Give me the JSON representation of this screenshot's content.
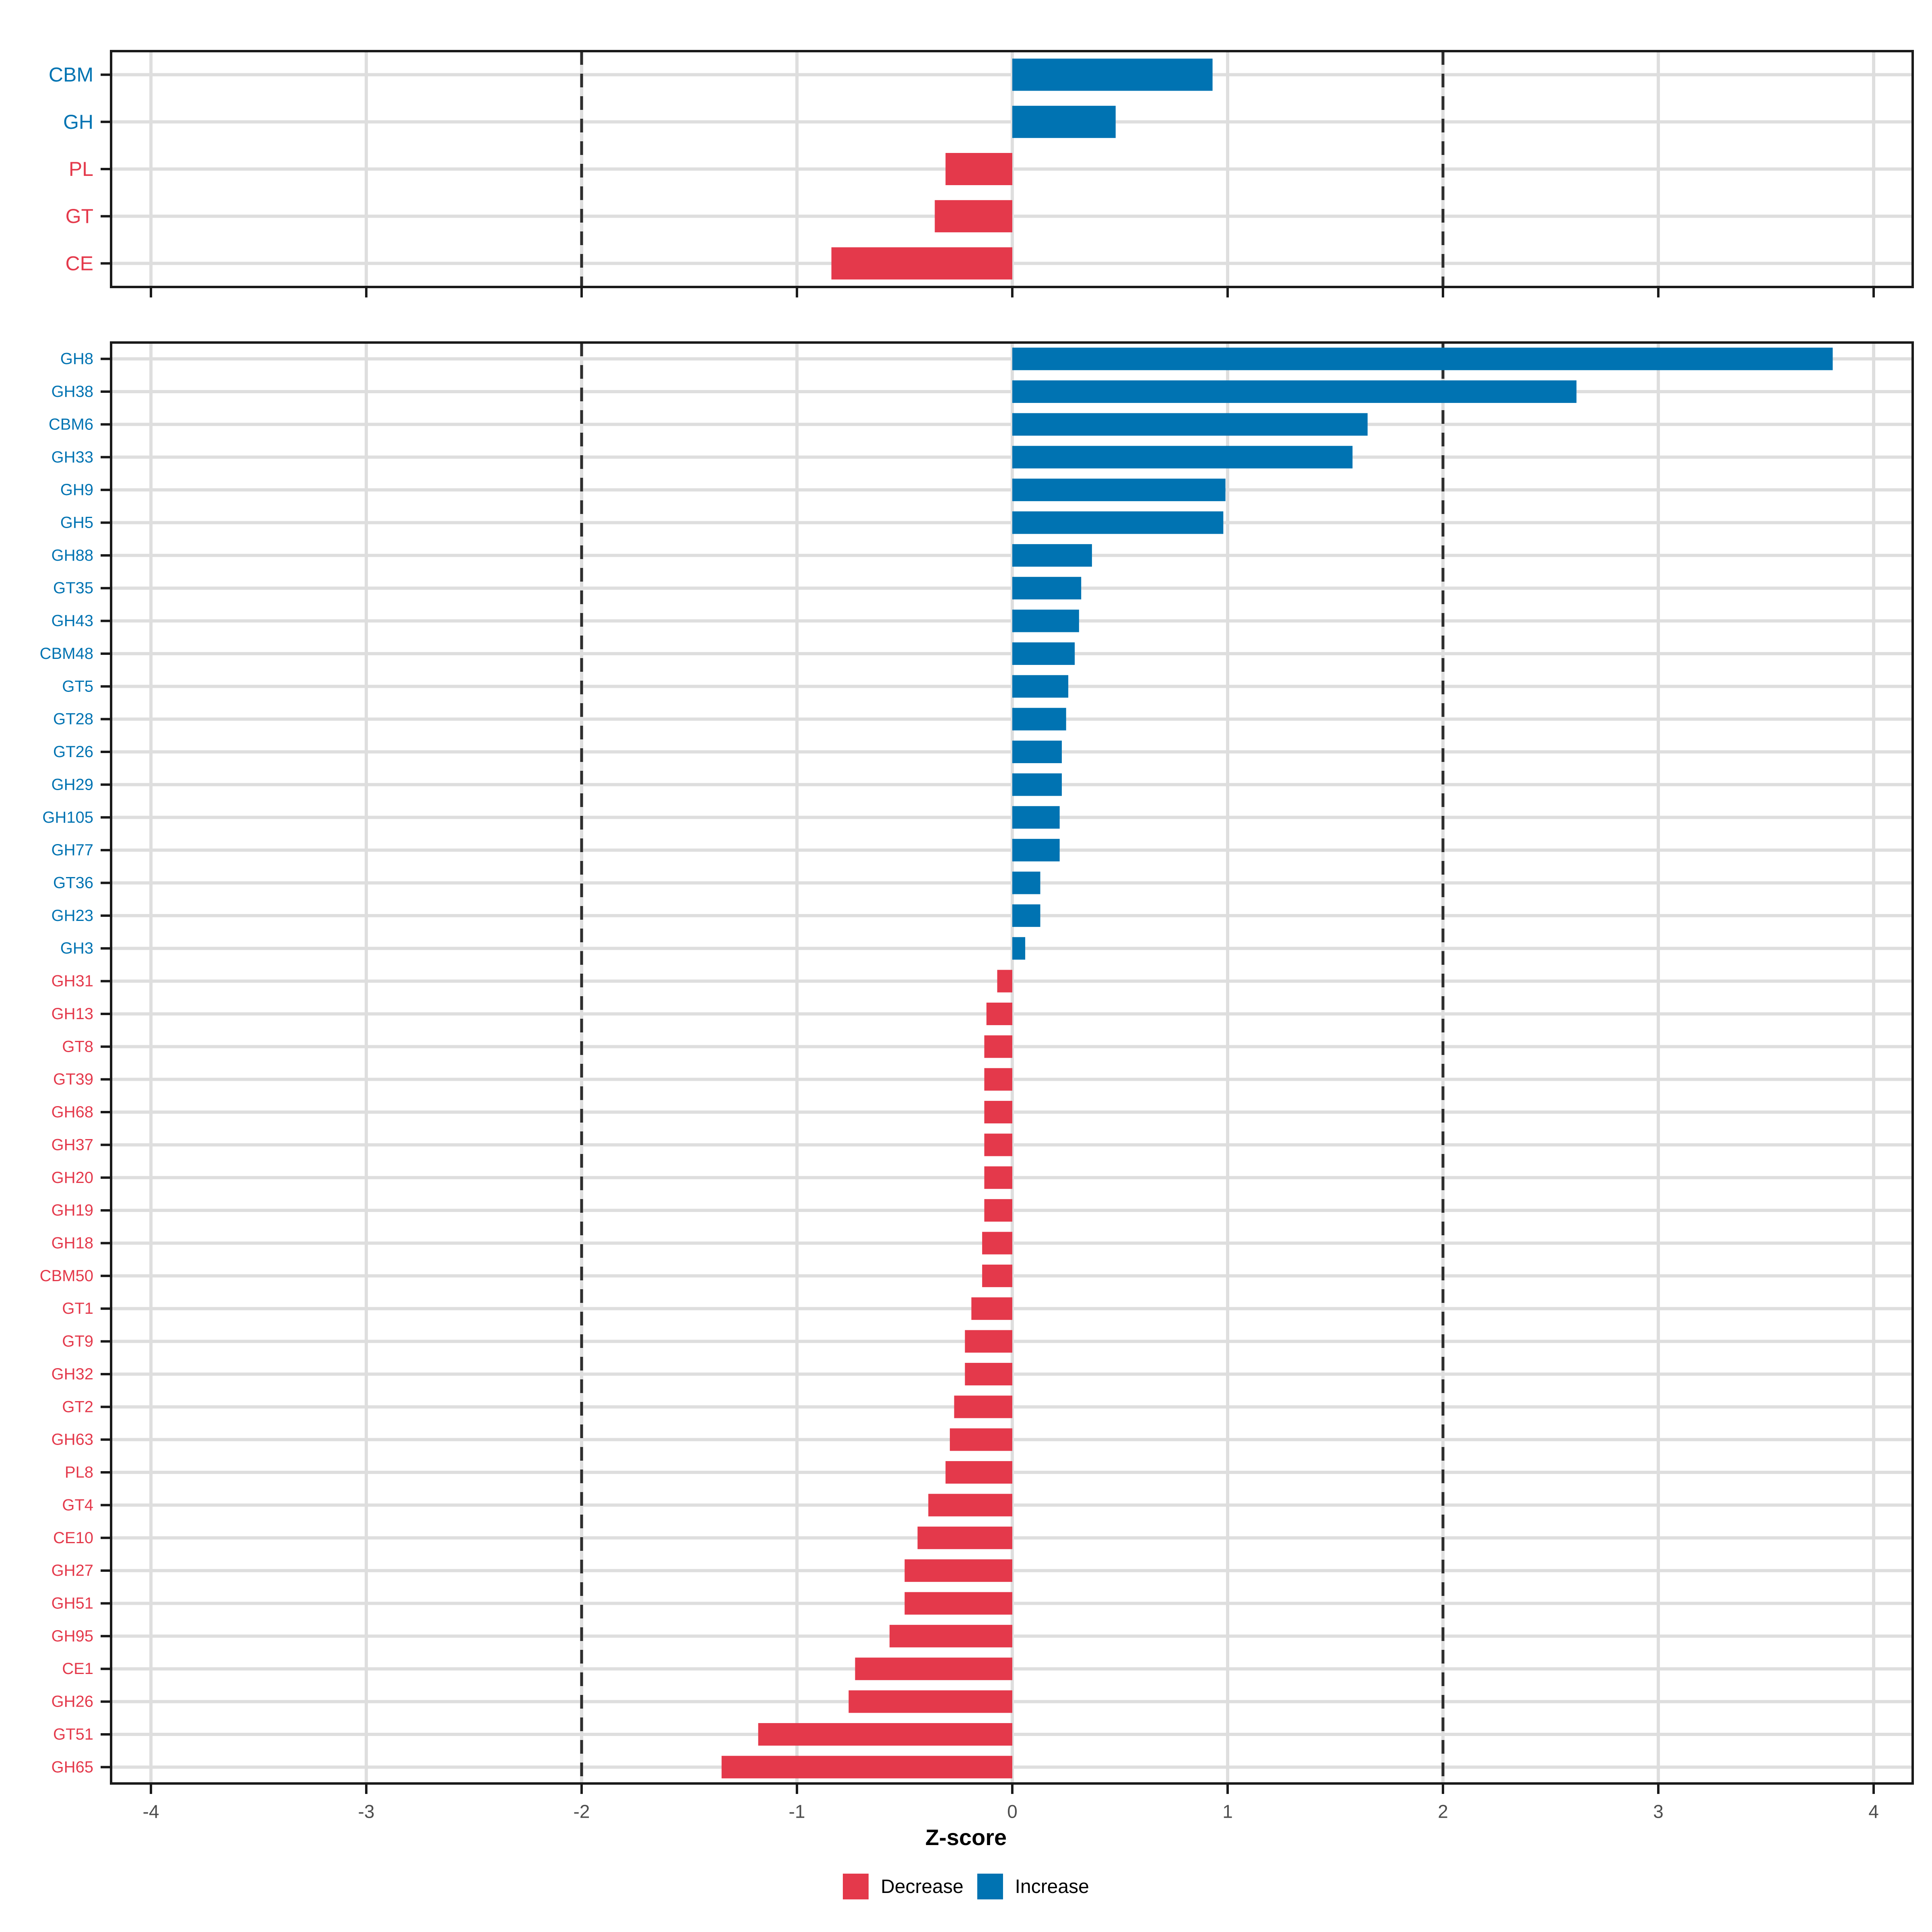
{
  "chart_data": {
    "type": "bar",
    "orientation": "horizontal",
    "xlabel": "Z-score",
    "x_ticks": [
      -4,
      -3,
      -2,
      -1,
      0,
      1,
      2,
      3,
      4
    ],
    "xlim": [
      -4.19,
      4.19
    ],
    "reference_lines": [
      -2,
      2
    ],
    "grid": true,
    "legend_position": "bottom",
    "colors": {
      "increase": "#0073B2",
      "decrease": "#E4394B",
      "grid": "#DEDEDE",
      "axis_text": "#4D4D4D",
      "reference_line": "#2E2E2E",
      "panel_border": "#1A1A1A",
      "background": "#FFFFFF"
    },
    "legend": {
      "entries": [
        {
          "label": "Decrease",
          "color": "#E4394B"
        },
        {
          "label": "Increase",
          "color": "#0073B2"
        }
      ]
    },
    "panels": [
      {
        "name": "classes",
        "categories": [
          "CBM",
          "GH",
          "PL",
          "GT",
          "CE"
        ],
        "values": [
          0.93,
          0.48,
          -0.31,
          -0.36,
          -0.84
        ]
      },
      {
        "name": "families",
        "categories": [
          "GH8",
          "GH38",
          "CBM6",
          "GH33",
          "GH9",
          "GH5",
          "GH88",
          "GT35",
          "GH43",
          "CBM48",
          "GT5",
          "GT28",
          "GT26",
          "GH29",
          "GH105",
          "GH77",
          "GT36",
          "GH23",
          "GH3",
          "GH31",
          "GH13",
          "GT8",
          "GT39",
          "GH68",
          "GH37",
          "GH20",
          "GH19",
          "GH18",
          "CBM50",
          "GT1",
          "GT9",
          "GH32",
          "GT2",
          "GH63",
          "PL8",
          "GT4",
          "CE10",
          "GH27",
          "GH51",
          "GH95",
          "CE1",
          "GH26",
          "GT51",
          "GH65"
        ],
        "values": [
          3.81,
          2.62,
          1.65,
          1.58,
          0.99,
          0.98,
          0.37,
          0.32,
          0.31,
          0.29,
          0.26,
          0.25,
          0.23,
          0.23,
          0.22,
          0.22,
          0.13,
          0.13,
          0.06,
          -0.07,
          -0.12,
          -0.13,
          -0.13,
          -0.13,
          -0.13,
          -0.13,
          -0.13,
          -0.14,
          -0.14,
          -0.19,
          -0.22,
          -0.22,
          -0.27,
          -0.29,
          -0.31,
          -0.39,
          -0.44,
          -0.5,
          -0.5,
          -0.57,
          -0.73,
          -0.76,
          -1.18,
          -1.35
        ]
      }
    ]
  }
}
